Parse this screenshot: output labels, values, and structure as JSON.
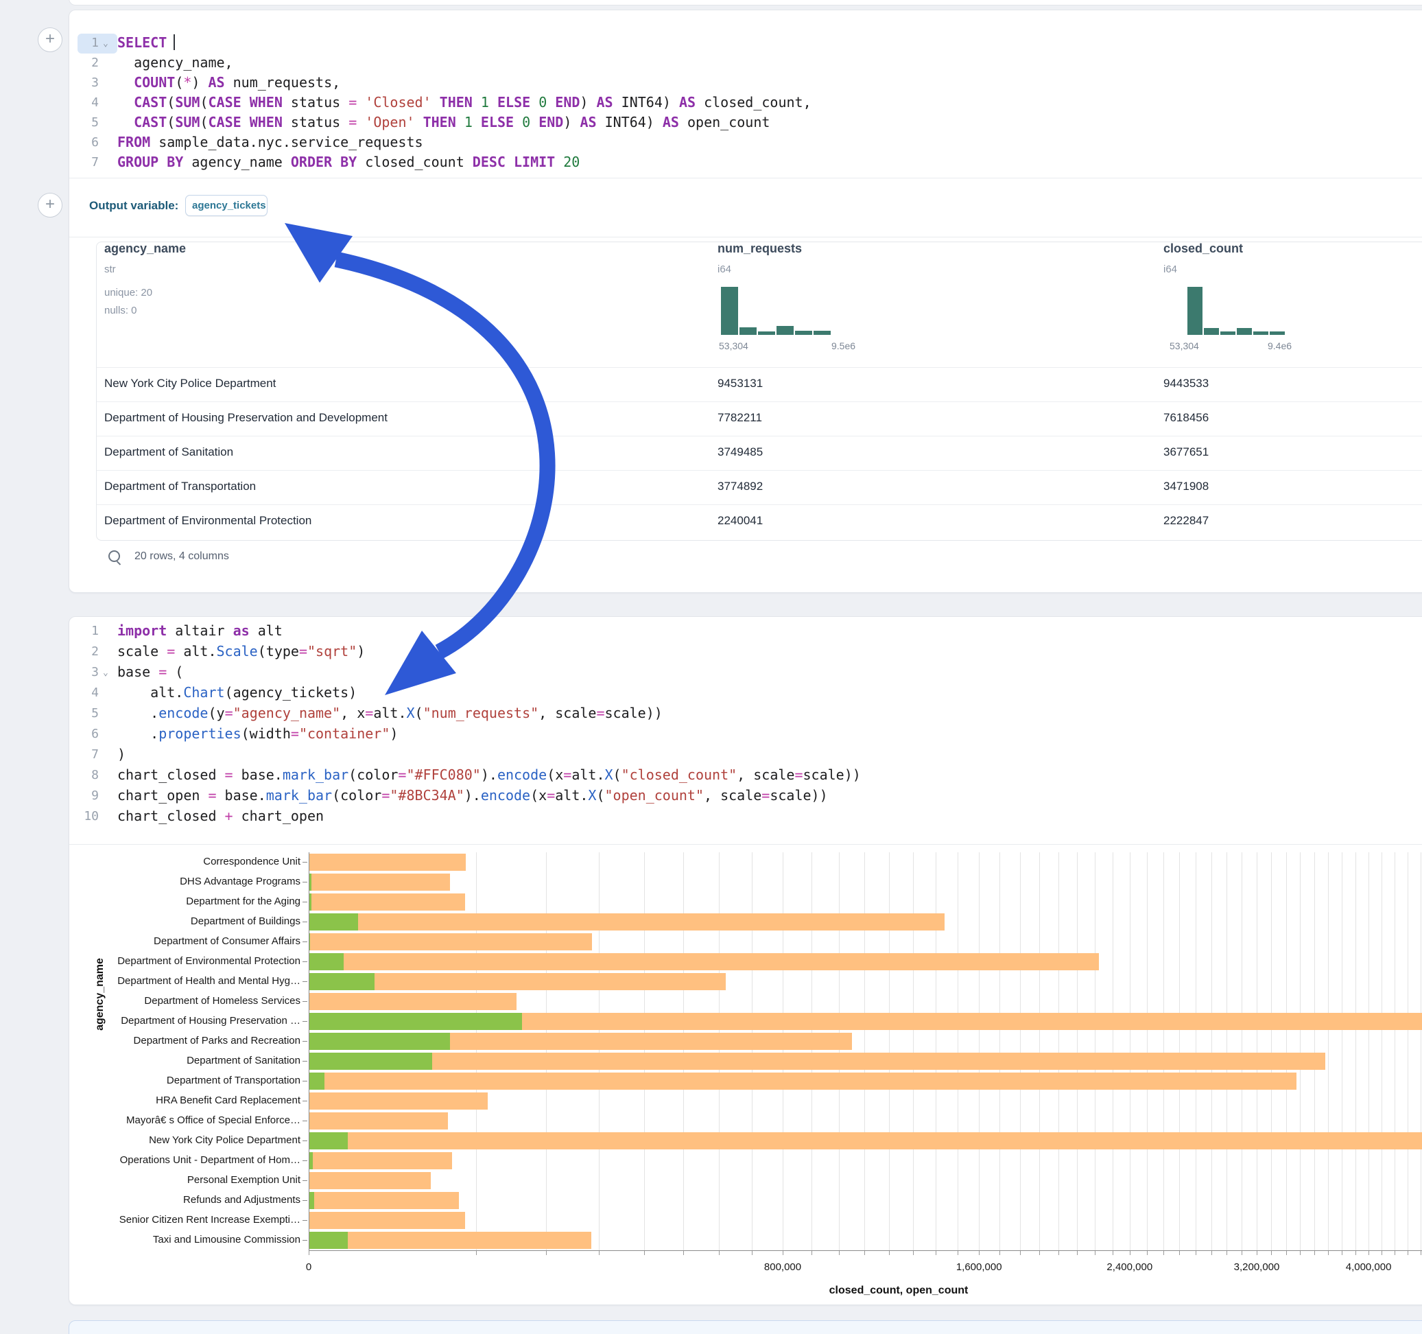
{
  "colors": {
    "closed_bar": "#FFC080",
    "open_bar": "#8BC34A",
    "histogram": "#3c7a6e",
    "annotation_arrow": "#2e59d6",
    "keyword": "#8d2fa8",
    "string": "#b0413c"
  },
  "gutter": {
    "add_button_label": "+"
  },
  "sql_cell": {
    "lines": [
      {
        "n": "1",
        "caret": true,
        "spans": [
          [
            "kw",
            "SELECT"
          ],
          [
            "cursor",
            ""
          ]
        ]
      },
      {
        "n": "2",
        "spans": [
          [
            "p",
            "  agency_name,"
          ]
        ]
      },
      {
        "n": "3",
        "spans": [
          [
            "p",
            "  "
          ],
          [
            "kw",
            "COUNT"
          ],
          [
            "p",
            "("
          ],
          [
            "op",
            "*"
          ],
          [
            "p",
            ") "
          ],
          [
            "kw",
            "AS"
          ],
          [
            "p",
            " num_requests,"
          ]
        ]
      },
      {
        "n": "4",
        "spans": [
          [
            "p",
            "  "
          ],
          [
            "kw",
            "CAST"
          ],
          [
            "p",
            "("
          ],
          [
            "kw",
            "SUM"
          ],
          [
            "p",
            "("
          ],
          [
            "kw",
            "CASE"
          ],
          [
            "p",
            " "
          ],
          [
            "kw",
            "WHEN"
          ],
          [
            "p",
            " status "
          ],
          [
            "op",
            "="
          ],
          [
            "p",
            " "
          ],
          [
            "str",
            "'Closed'"
          ],
          [
            "p",
            " "
          ],
          [
            "kw",
            "THEN"
          ],
          [
            "p",
            " "
          ],
          [
            "num",
            "1"
          ],
          [
            "p",
            " "
          ],
          [
            "kw",
            "ELSE"
          ],
          [
            "p",
            " "
          ],
          [
            "num",
            "0"
          ],
          [
            "p",
            " "
          ],
          [
            "kw",
            "END"
          ],
          [
            "p",
            ") "
          ],
          [
            "kw",
            "AS"
          ],
          [
            "p",
            " INT64) "
          ],
          [
            "kw",
            "AS"
          ],
          [
            "p",
            " closed_count,"
          ]
        ]
      },
      {
        "n": "5",
        "spans": [
          [
            "p",
            "  "
          ],
          [
            "kw",
            "CAST"
          ],
          [
            "p",
            "("
          ],
          [
            "kw",
            "SUM"
          ],
          [
            "p",
            "("
          ],
          [
            "kw",
            "CASE"
          ],
          [
            "p",
            " "
          ],
          [
            "kw",
            "WHEN"
          ],
          [
            "p",
            " status "
          ],
          [
            "op",
            "="
          ],
          [
            "p",
            " "
          ],
          [
            "str",
            "'Open'"
          ],
          [
            "p",
            " "
          ],
          [
            "kw",
            "THEN"
          ],
          [
            "p",
            " "
          ],
          [
            "num",
            "1"
          ],
          [
            "p",
            " "
          ],
          [
            "kw",
            "ELSE"
          ],
          [
            "p",
            " "
          ],
          [
            "num",
            "0"
          ],
          [
            "p",
            " "
          ],
          [
            "kw",
            "END"
          ],
          [
            "p",
            ") "
          ],
          [
            "kw",
            "AS"
          ],
          [
            "p",
            " INT64) "
          ],
          [
            "kw",
            "AS"
          ],
          [
            "p",
            " open_count"
          ]
        ]
      },
      {
        "n": "6",
        "spans": [
          [
            "kw",
            "FROM"
          ],
          [
            "p",
            " sample_data.nyc.service_requests"
          ]
        ]
      },
      {
        "n": "7",
        "spans": [
          [
            "kw",
            "GROUP BY"
          ],
          [
            "p",
            " agency_name "
          ],
          [
            "kw",
            "ORDER BY"
          ],
          [
            "p",
            " closed_count "
          ],
          [
            "kw",
            "DESC"
          ],
          [
            "p",
            " "
          ],
          [
            "kw",
            "LIMIT"
          ],
          [
            "p",
            " "
          ],
          [
            "num",
            "20"
          ]
        ]
      }
    ]
  },
  "output": {
    "label": "Output variable:",
    "variable": "agency_tickets"
  },
  "table": {
    "columns": [
      {
        "name": "agency_name",
        "type": "str",
        "meta": [
          "unique: 20",
          "nulls: 0"
        ]
      },
      {
        "name": "num_requests",
        "type": "i64",
        "hist": {
          "heights": [
            70,
            11,
            5,
            13,
            6,
            6
          ],
          "min_label": "53,304",
          "max_label": "9.5e6"
        }
      },
      {
        "name": "closed_count",
        "type": "i64",
        "hist": {
          "heights": [
            70,
            10,
            5,
            10,
            5,
            5
          ],
          "min_label": "53,304",
          "max_label": "9.4e6"
        }
      }
    ],
    "rows": [
      [
        "New York City Police Department",
        "9453131",
        "9443533"
      ],
      [
        "Department of Housing Preservation and Development",
        "7782211",
        "7618456"
      ],
      [
        "Department of Sanitation",
        "3749485",
        "3677651"
      ],
      [
        "Department of Transportation",
        "3774892",
        "3471908"
      ],
      [
        "Department of Environmental Protection",
        "2240041",
        "2222847"
      ]
    ],
    "footer": "20 rows, 4 columns"
  },
  "python_cell": {
    "lines": [
      {
        "n": "1",
        "spans": [
          [
            "kw",
            "import"
          ],
          [
            "p",
            " altair "
          ],
          [
            "kw",
            "as"
          ],
          [
            "p",
            " alt"
          ]
        ]
      },
      {
        "n": "2",
        "spans": [
          [
            "p",
            "scale "
          ],
          [
            "op",
            "="
          ],
          [
            "p",
            " alt."
          ],
          [
            "fn",
            "Scale"
          ],
          [
            "p",
            "(type"
          ],
          [
            "op",
            "="
          ],
          [
            "str",
            "\"sqrt\""
          ],
          [
            "p",
            ")"
          ]
        ]
      },
      {
        "n": "3",
        "caret": true,
        "spans": [
          [
            "p",
            "base "
          ],
          [
            "op",
            "="
          ],
          [
            "p",
            " ("
          ]
        ]
      },
      {
        "n": "4",
        "spans": [
          [
            "p",
            "    alt."
          ],
          [
            "fn",
            "Chart"
          ],
          [
            "p",
            "(agency_tickets)"
          ]
        ]
      },
      {
        "n": "5",
        "spans": [
          [
            "p",
            "    ."
          ],
          [
            "fn",
            "encode"
          ],
          [
            "p",
            "(y"
          ],
          [
            "op",
            "="
          ],
          [
            "str",
            "\"agency_name\""
          ],
          [
            "p",
            ", x"
          ],
          [
            "op",
            "="
          ],
          [
            "p",
            "alt."
          ],
          [
            "fn",
            "X"
          ],
          [
            "p",
            "("
          ],
          [
            "str",
            "\"num_requests\""
          ],
          [
            "p",
            ", scale"
          ],
          [
            "op",
            "="
          ],
          [
            "p",
            "scale))"
          ]
        ]
      },
      {
        "n": "6",
        "spans": [
          [
            "p",
            "    ."
          ],
          [
            "fn",
            "properties"
          ],
          [
            "p",
            "(width"
          ],
          [
            "op",
            "="
          ],
          [
            "str",
            "\"container\""
          ],
          [
            "p",
            ")"
          ]
        ]
      },
      {
        "n": "7",
        "spans": [
          [
            "p",
            ")"
          ]
        ]
      },
      {
        "n": "8",
        "spans": [
          [
            "p",
            "chart_closed "
          ],
          [
            "op",
            "="
          ],
          [
            "p",
            " base."
          ],
          [
            "fn",
            "mark_bar"
          ],
          [
            "p",
            "(color"
          ],
          [
            "op",
            "="
          ],
          [
            "str",
            "\"#FFC080\""
          ],
          [
            "p",
            ")."
          ],
          [
            "fn",
            "encode"
          ],
          [
            "p",
            "(x"
          ],
          [
            "op",
            "="
          ],
          [
            "p",
            "alt."
          ],
          [
            "fn",
            "X"
          ],
          [
            "p",
            "("
          ],
          [
            "str",
            "\"closed_count\""
          ],
          [
            "p",
            ", scale"
          ],
          [
            "op",
            "="
          ],
          [
            "p",
            "scale))"
          ]
        ]
      },
      {
        "n": "9",
        "spans": [
          [
            "p",
            "chart_open "
          ],
          [
            "op",
            "="
          ],
          [
            "p",
            " base."
          ],
          [
            "fn",
            "mark_bar"
          ],
          [
            "p",
            "(color"
          ],
          [
            "op",
            "="
          ],
          [
            "str",
            "\"#8BC34A\""
          ],
          [
            "p",
            ")."
          ],
          [
            "fn",
            "encode"
          ],
          [
            "p",
            "(x"
          ],
          [
            "op",
            "="
          ],
          [
            "p",
            "alt."
          ],
          [
            "fn",
            "X"
          ],
          [
            "p",
            "("
          ],
          [
            "str",
            "\"open_count\""
          ],
          [
            "p",
            ", scale"
          ],
          [
            "op",
            "="
          ],
          [
            "p",
            "scale))"
          ]
        ]
      },
      {
        "n": "10",
        "spans": [
          [
            "p",
            "chart_closed "
          ],
          [
            "op",
            "+"
          ],
          [
            "p",
            " chart_open"
          ]
        ]
      }
    ]
  },
  "chart_data": {
    "type": "bar",
    "orientation": "horizontal",
    "x_scale": "sqrt",
    "xlabel": "closed_count, open_count",
    "ylabel": "agency_name",
    "grid": true,
    "x_tick_labels": [
      {
        "value": 0,
        "label": "0"
      },
      {
        "value": 800000,
        "label": "800,000"
      },
      {
        "value": 1600000,
        "label": "1,600,000"
      },
      {
        "value": 2400000,
        "label": "2,400,000"
      },
      {
        "value": 3200000,
        "label": "3,200,000"
      },
      {
        "value": 4000000,
        "label": "4,000,000"
      }
    ],
    "series": [
      {
        "name": "closed_count",
        "color": "#FFC080"
      },
      {
        "name": "open_count",
        "color": "#8BC34A"
      }
    ],
    "agencies": [
      {
        "label": "Correspondence Unit",
        "closed": 88000,
        "open": 0
      },
      {
        "label": "DHS Advantage Programs",
        "closed": 71000,
        "open": 30
      },
      {
        "label": "Department for the Aging",
        "closed": 87000,
        "open": 30
      },
      {
        "label": "Department of Buildings",
        "closed": 1440000,
        "open": 8800
      },
      {
        "label": "Department of Consumer Affairs",
        "closed": 286000,
        "open": 10
      },
      {
        "label": "Department of Environmental Protection",
        "closed": 2222847,
        "open": 4300
      },
      {
        "label": "Department of Health and Mental Hyg…",
        "closed": 620000,
        "open": 15400
      },
      {
        "label": "Department of Homeless Services",
        "closed": 154000,
        "open": 0
      },
      {
        "label": "Department of Housing Preservation …",
        "closed": 7618456,
        "open": 162000
      },
      {
        "label": "Department of Parks and Recreation",
        "closed": 1050000,
        "open": 71000
      },
      {
        "label": "Department of Sanitation",
        "closed": 3677651,
        "open": 54000
      },
      {
        "label": "Department of Transportation",
        "closed": 3471908,
        "open": 900
      },
      {
        "label": "HRA Benefit Card Replacement",
        "closed": 114000,
        "open": 0
      },
      {
        "label": "Mayorâ€ s Office of Special Enforce…",
        "closed": 69000,
        "open": 0
      },
      {
        "label": "New York City Police Department",
        "closed": 9443533,
        "open": 5500
      },
      {
        "label": "Operations Unit - Department of Hom…",
        "closed": 73000,
        "open": 60
      },
      {
        "label": "Personal Exemption Unit",
        "closed": 53304,
        "open": 0
      },
      {
        "label": "Refunds and Adjustments",
        "closed": 80000,
        "open": 110
      },
      {
        "label": "Senior Citizen Rent Increase Exempti…",
        "closed": 87000,
        "open": 0
      },
      {
        "label": "Taxi and Limousine Commission",
        "closed": 285000,
        "open": 5500
      }
    ]
  }
}
